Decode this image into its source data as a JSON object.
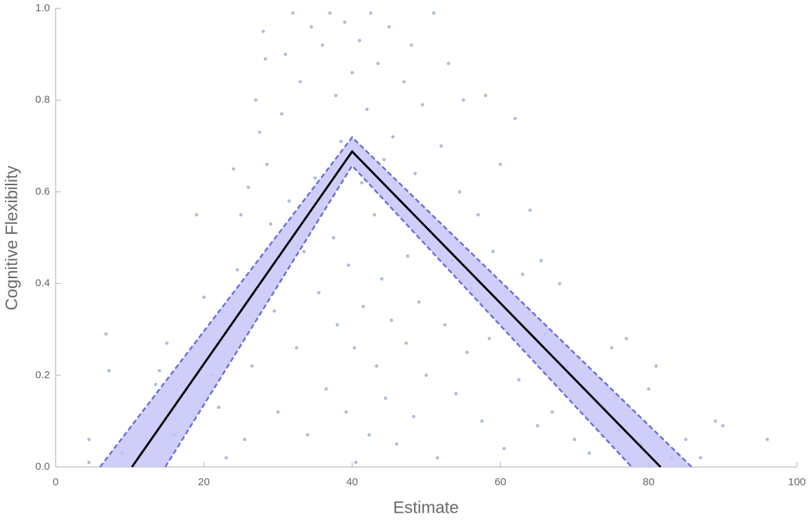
{
  "chart_data": {
    "type": "scatter",
    "x_label": "Estimate",
    "y_label": "Cognitive Flexibility",
    "xlim": [
      0,
      100
    ],
    "ylim": [
      0,
      1
    ],
    "xticks": [
      0,
      20,
      40,
      60,
      80,
      100
    ],
    "yticks": [
      {
        "value": 0,
        "label": "0.0"
      },
      0.2,
      0.4,
      0.6,
      0.8,
      {
        "value": 1,
        "label": "1.0"
      }
    ],
    "series": [
      {
        "color": "#8ea8cc",
        "x": [
          4.5,
          4.5,
          6.8,
          7.2,
          9,
          13.5,
          14,
          15,
          16,
          19,
          20,
          21,
          22,
          23,
          24,
          24.5,
          25,
          25.5,
          26,
          26.5,
          27,
          27.5,
          28,
          28.3,
          28.5,
          29,
          29.5,
          30,
          30.5,
          31,
          31.5,
          32,
          32.5,
          33,
          33.5,
          34,
          34.5,
          35,
          35.5,
          36,
          36.5,
          37,
          37.5,
          37.8,
          38,
          38.5,
          39,
          39.2,
          39.5,
          40,
          40.3,
          40.5,
          41,
          41.3,
          41.5,
          42,
          42.3,
          42.5,
          43,
          43.3,
          43.5,
          44,
          44.3,
          44.5,
          45,
          45.3,
          45.5,
          46,
          46.5,
          47,
          47.3,
          47.5,
          48,
          48.3,
          48.5,
          49,
          49.5,
          50,
          50.5,
          51,
          51.5,
          52,
          52.5,
          53,
          53.5,
          54,
          54.5,
          55,
          55.5,
          56,
          57,
          57.5,
          58,
          58.5,
          59,
          60,
          60.5,
          61,
          62,
          62.5,
          63,
          64,
          65,
          65.5,
          66,
          67,
          68,
          69,
          70,
          71,
          72,
          73,
          75,
          76,
          77,
          79,
          80,
          81,
          83,
          85,
          87,
          89,
          90,
          96
        ],
        "values": [
          0.06,
          0.01,
          0.29,
          0.21,
          0.03,
          0.18,
          0.21,
          0.27,
          0.07,
          0.55,
          0.37,
          0.2,
          0.13,
          0.02,
          0.65,
          0.43,
          0.55,
          0.06,
          0.61,
          0.22,
          0.8,
          0.73,
          0.95,
          0.89,
          0.66,
          0.53,
          0.34,
          0.12,
          0.77,
          0.9,
          0.58,
          0.99,
          0.26,
          0.84,
          0.47,
          0.07,
          0.96,
          0.63,
          0.38,
          0.92,
          0.17,
          0.99,
          0.5,
          0.81,
          0.31,
          0.71,
          0.97,
          0.12,
          0.44,
          0.86,
          0.26,
          0.01,
          0.93,
          0.62,
          0.35,
          0.78,
          0.07,
          0.99,
          0.55,
          0.22,
          0.88,
          0.41,
          0.67,
          0.15,
          0.96,
          0.32,
          0.72,
          0.05,
          0.58,
          0.84,
          0.27,
          0.46,
          0.92,
          0.11,
          0.64,
          0.36,
          0.79,
          0.2,
          0.52,
          0.99,
          0.02,
          0.7,
          0.31,
          0.88,
          0.45,
          0.16,
          0.6,
          0.8,
          0.25,
          0.39,
          0.55,
          0.1,
          0.81,
          0.28,
          0.47,
          0.66,
          0.04,
          0.34,
          0.76,
          0.19,
          0.42,
          0.56,
          0.09,
          0.45,
          0.29,
          0.12,
          0.4,
          0.22,
          0.06,
          0.17,
          0.03,
          0.14,
          0.26,
          0.08,
          0.28,
          0.05,
          0.17,
          0.22,
          0.02,
          0.06,
          0.02,
          0.1,
          0.09,
          0.06
        ]
      }
    ],
    "fit": {
      "color": "#000000",
      "x": [
        10.3,
        40,
        81.6
      ],
      "values": [
        0,
        0.688,
        0
      ]
    },
    "band": {
      "color": "#6b6bdd",
      "fill": "#c6c6f7",
      "upper": {
        "x": [
          6,
          40,
          85.8
        ],
        "values": [
          0,
          0.719,
          0
        ]
      },
      "lower": {
        "x": [
          14.8,
          40,
          77.7
        ],
        "values": [
          0,
          0.657,
          0
        ]
      }
    }
  }
}
